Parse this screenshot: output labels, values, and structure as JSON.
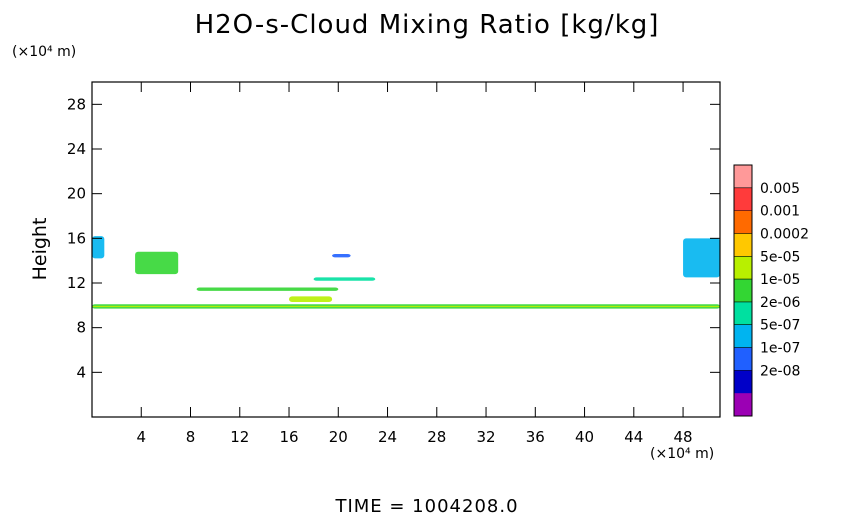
{
  "chart_data": {
    "type": "heatmap",
    "title": "H2O-s-Cloud Mixing Ratio [kg/kg]",
    "ylabel": "Height",
    "xlabel": "",
    "y_unit": "(×10⁴ m)",
    "x_unit": "(×10⁴ m)",
    "xlim": [
      0,
      51
    ],
    "ylim": [
      0,
      30
    ],
    "x_ticks": [
      4,
      8,
      12,
      16,
      20,
      24,
      28,
      32,
      36,
      40,
      44,
      48
    ],
    "y_ticks": [
      4,
      8,
      12,
      16,
      20,
      24,
      28
    ],
    "grid": false,
    "colorbar": {
      "labels": [
        "0.005",
        "0.001",
        "0.0002",
        "5e-05",
        "1e-05",
        "2e-06",
        "5e-07",
        "1e-07",
        "2e-08"
      ],
      "colors": [
        "#ff9999",
        "#ff3b3b",
        "#ff6a00",
        "#ffc800",
        "#b8f000",
        "#33d633",
        "#00e0a0",
        "#00b4f0",
        "#2060ff",
        "#0000c8",
        "#9b00b4"
      ]
    },
    "regions": [
      {
        "x": [
          0,
          51
        ],
        "y": [
          9.7,
          10.1
        ],
        "level": "1e-05"
      },
      {
        "x": [
          0,
          51
        ],
        "y": [
          9.85,
          9.95
        ],
        "level": "5e-05"
      },
      {
        "x": [
          8.5,
          20
        ],
        "y": [
          11.3,
          11.6
        ],
        "level": "1e-05"
      },
      {
        "x": [
          18,
          23
        ],
        "y": [
          12.2,
          12.5
        ],
        "level": "2e-06"
      },
      {
        "x": [
          3.5,
          7
        ],
        "y": [
          12.8,
          14.8
        ],
        "level": "1e-05"
      },
      {
        "x": [
          0,
          1
        ],
        "y": [
          14.2,
          16.2
        ],
        "level": "5e-07"
      },
      {
        "x": [
          48,
          51
        ],
        "y": [
          12.5,
          16.0
        ],
        "level": "5e-07"
      },
      {
        "x": [
          19.5,
          21
        ],
        "y": [
          14.3,
          14.6
        ],
        "level": "1e-07"
      },
      {
        "x": [
          16,
          19.5
        ],
        "y": [
          10.3,
          10.8
        ],
        "level": "5e-05"
      }
    ]
  },
  "time_label": "TIME  =  1004208.0"
}
